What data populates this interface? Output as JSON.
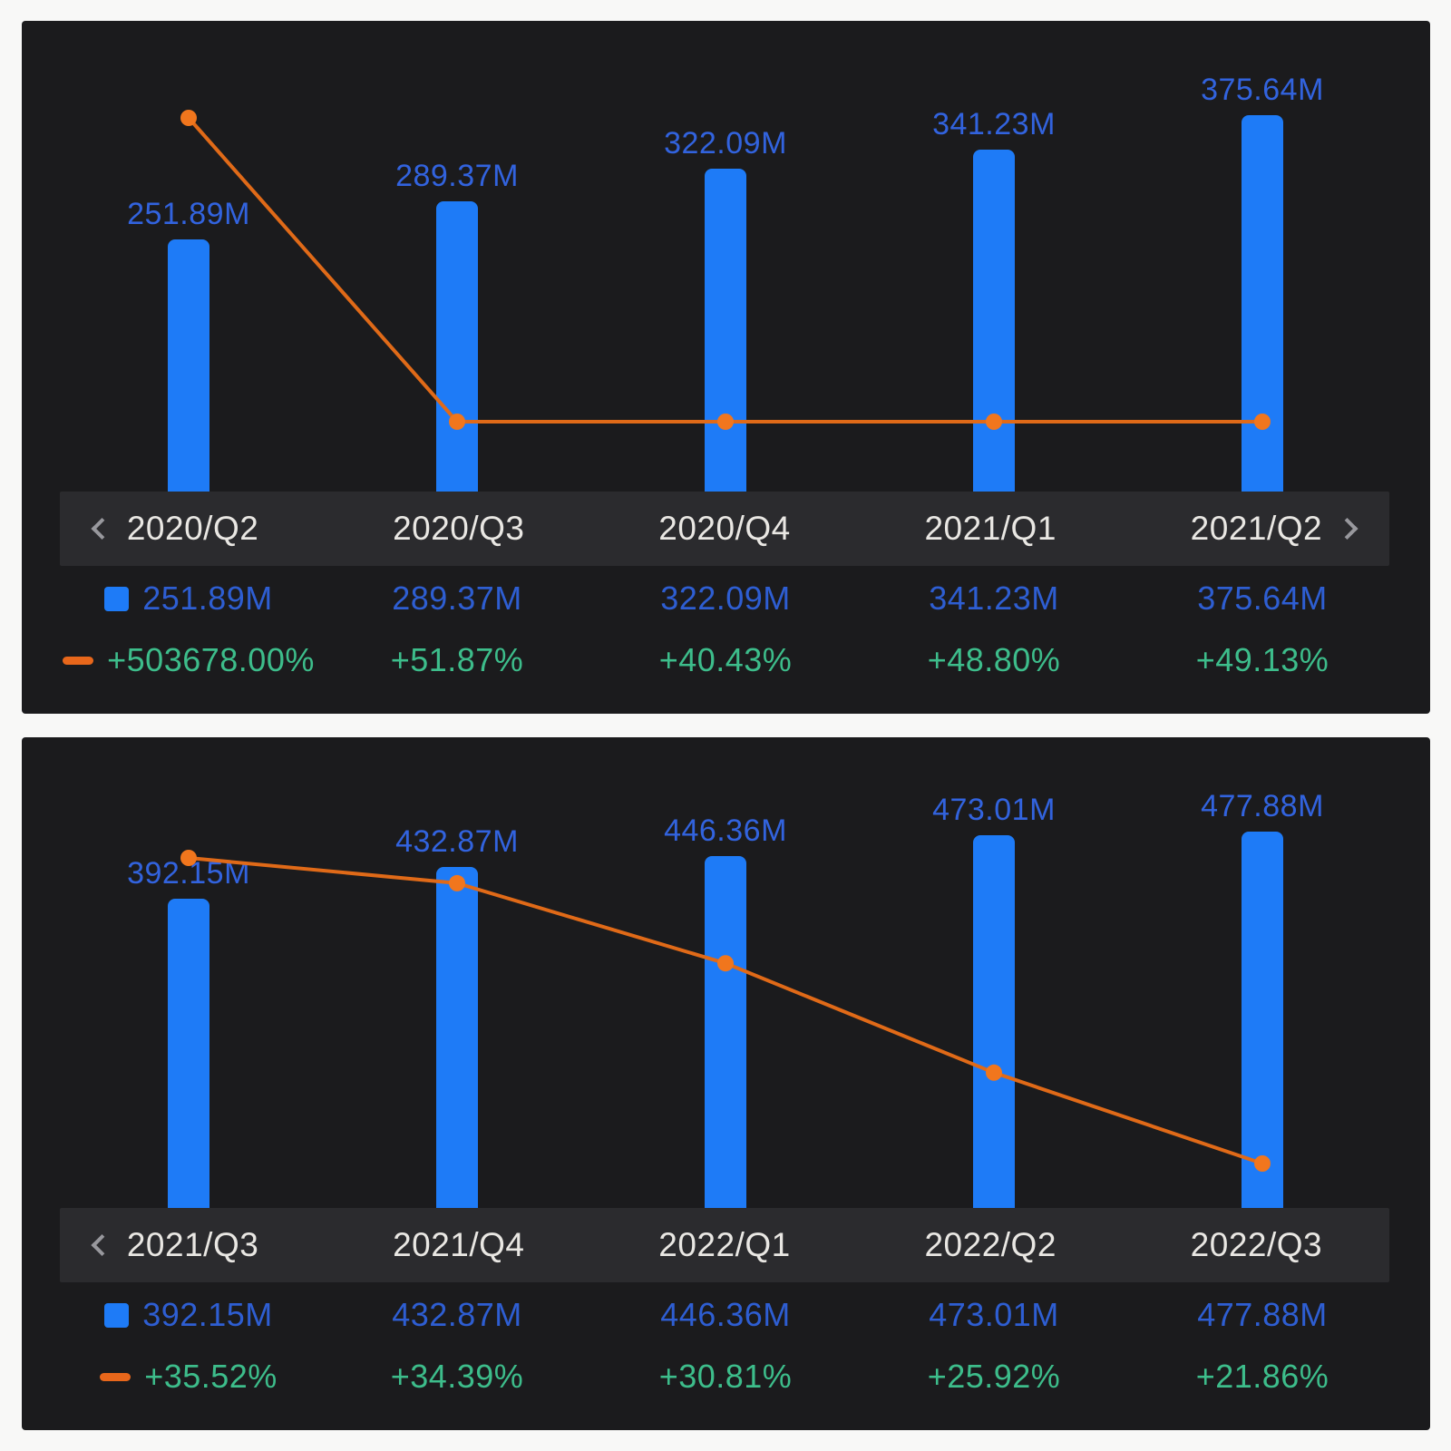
{
  "colors": {
    "page_background": "#f8f8f7",
    "panel_background": "#1b1b1d",
    "strip_background": "#2b2b2e",
    "bar_blue": "#1e7bf7",
    "bar_label_blue": "#3263de",
    "value_text_blue": "#2e5ed2",
    "growth_text_green": "#3dbd8b",
    "line_orange": "#e06a18",
    "dot_orange": "#f1761d",
    "swatch_orange": "#e8671b",
    "quarter_text": "#e9e7e3",
    "chevron_gray": "#98989d"
  },
  "panels": [
    {
      "name": "quarterly-earnings-panel-1",
      "nav": {
        "has_prev": true,
        "has_next": true
      },
      "columns": [
        {
          "quarter": "2020/Q2",
          "value": "251.89M",
          "growth": "+503678.00%"
        },
        {
          "quarter": "2020/Q3",
          "value": "289.37M",
          "growth": "+51.87%"
        },
        {
          "quarter": "2020/Q4",
          "value": "322.09M",
          "growth": "+40.43%"
        },
        {
          "quarter": "2021/Q1",
          "value": "341.23M",
          "growth": "+48.80%"
        },
        {
          "quarter": "2021/Q2",
          "value": "375.64M",
          "growth": "+49.13%"
        }
      ]
    },
    {
      "name": "quarterly-earnings-panel-2",
      "nav": {
        "has_prev": true,
        "has_next": false
      },
      "columns": [
        {
          "quarter": "2021/Q3",
          "value": "392.15M",
          "growth": "+35.52%"
        },
        {
          "quarter": "2021/Q4",
          "value": "432.87M",
          "growth": "+34.39%"
        },
        {
          "quarter": "2022/Q1",
          "value": "446.36M",
          "growth": "+30.81%"
        },
        {
          "quarter": "2022/Q2",
          "value": "473.01M",
          "growth": "+25.92%"
        },
        {
          "quarter": "2022/Q3",
          "value": "477.88M",
          "growth": "+21.86%"
        }
      ]
    }
  ],
  "chart_data": [
    {
      "type": "bar+line",
      "categories": [
        "2020/Q2",
        "2020/Q3",
        "2020/Q4",
        "2021/Q1",
        "2021/Q2"
      ],
      "series": [
        {
          "name": "value",
          "type": "bar",
          "unit": "M",
          "values": [
            251.89,
            289.37,
            322.09,
            341.23,
            375.64
          ],
          "labels": [
            "251.89M",
            "289.37M",
            "322.09M",
            "341.23M",
            "375.64M"
          ],
          "color": "#1e7bf7"
        },
        {
          "name": "growth",
          "type": "line",
          "unit": "%",
          "values": [
            503678.0,
            51.87,
            40.43,
            48.8,
            49.13
          ],
          "labels": [
            "+503678.00%",
            "+51.87%",
            "+40.43%",
            "+48.80%",
            "+49.13%"
          ],
          "color": "#e06a18"
        }
      ],
      "legend_position": "bottom",
      "grid": false
    },
    {
      "type": "bar+line",
      "categories": [
        "2021/Q3",
        "2021/Q4",
        "2022/Q1",
        "2022/Q2",
        "2022/Q3"
      ],
      "series": [
        {
          "name": "value",
          "type": "bar",
          "unit": "M",
          "values": [
            392.15,
            432.87,
            446.36,
            473.01,
            477.88
          ],
          "labels": [
            "392.15M",
            "432.87M",
            "446.36M",
            "473.01M",
            "477.88M"
          ],
          "color": "#1e7bf7"
        },
        {
          "name": "growth",
          "type": "line",
          "unit": "%",
          "values": [
            35.52,
            34.39,
            30.81,
            25.92,
            21.86
          ],
          "labels": [
            "+35.52%",
            "+34.39%",
            "+30.81%",
            "+25.92%",
            "+21.86%"
          ],
          "color": "#e06a18"
        }
      ],
      "legend_position": "bottom",
      "grid": false
    }
  ]
}
